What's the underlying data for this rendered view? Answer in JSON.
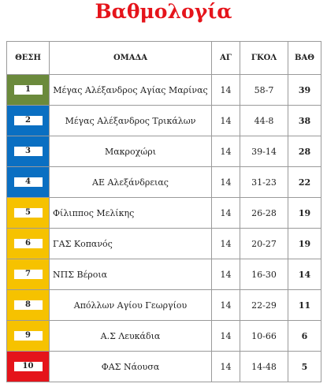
{
  "title": "Βαθμολογία",
  "table": {
    "header": [
      "ΘΕΣΗ",
      "ΟΜΑΔΑ",
      "ΑΓ",
      "ΓΚΟΛ",
      "ΒΑΘ"
    ],
    "rows": [
      [
        1,
        "Μέγας Αλέξανδρος Αγίας Μαρίνας",
        14,
        "58-7",
        39
      ],
      [
        2,
        "Μέγας Αλέξανδρος Τρικάλων",
        14,
        "44-8",
        38
      ],
      [
        3,
        "Μακροχώρι",
        14,
        "39-14",
        28
      ],
      [
        4,
        "ΑΕ Αλεξάνδρειας",
        14,
        "31-23",
        22
      ],
      [
        5,
        "Φίλιππος Μελίκης",
        14,
        "26-28",
        19
      ],
      [
        6,
        "ΓΑΣ Κοπανός",
        14,
        "20-27",
        19
      ],
      [
        7,
        "ΝΠΣ Βέροια",
        14,
        "16-30",
        14
      ],
      [
        8,
        "Απόλλων Αγίου Γεωργίου",
        14,
        "22-29",
        11
      ],
      [
        9,
        "Α.Σ Λευκάδια",
        14,
        "10-66",
        6
      ],
      [
        10,
        "ΦΑΣ Νάουσα",
        14,
        "14-48",
        5
      ]
    ]
  }
}
